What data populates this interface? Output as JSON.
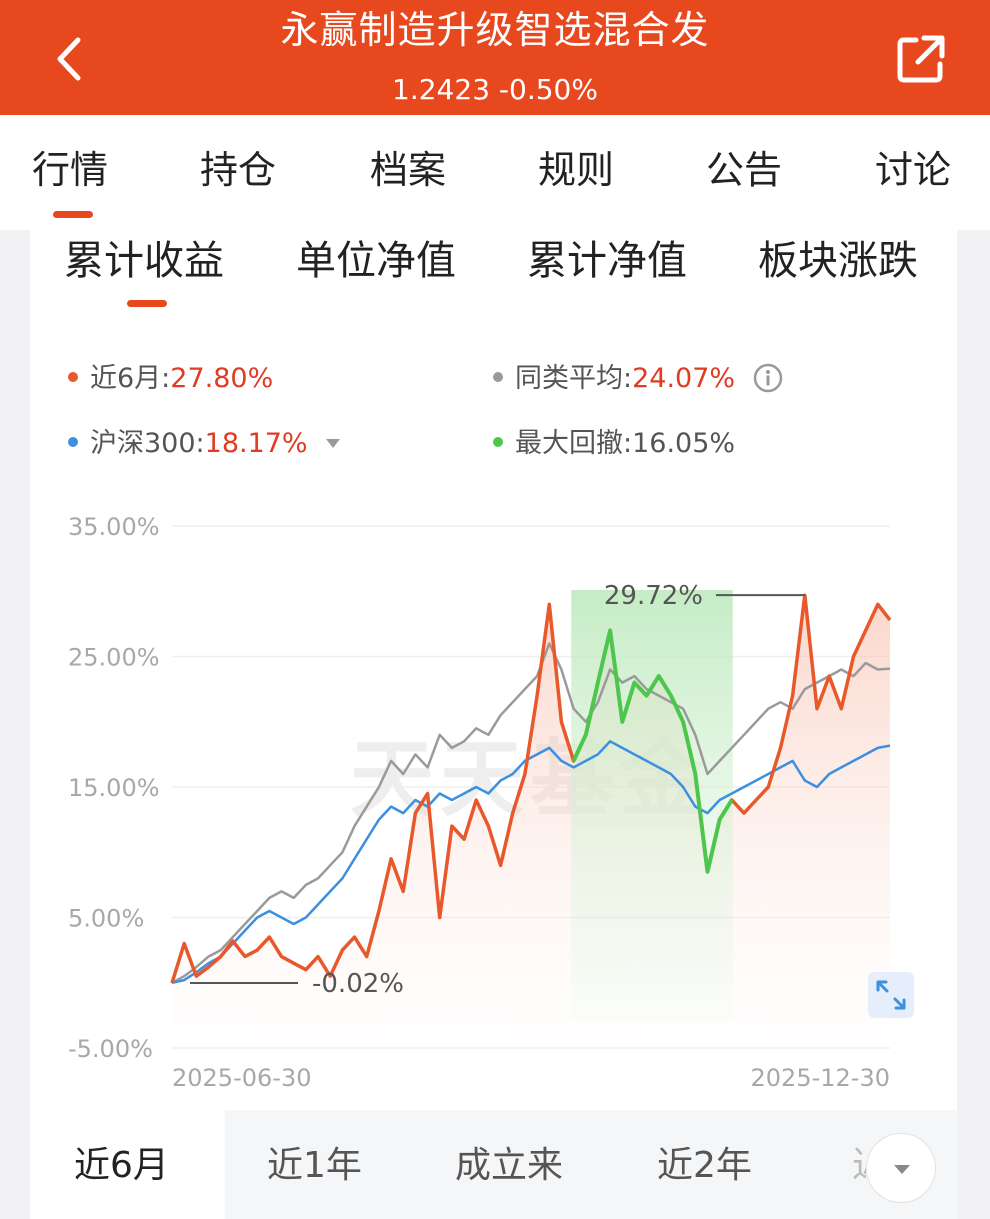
{
  "header": {
    "title": "永赢制造升级智选混合发",
    "subtitle": "1.2423 -0.50%"
  },
  "tabs": [
    "行情",
    "持仓",
    "档案",
    "规则",
    "公告",
    "讨论"
  ],
  "subtabs": [
    "累计收益",
    "单位净值",
    "累计净值",
    "板块涨跌"
  ],
  "legend": {
    "fund": {
      "label": "近6月:",
      "value": "27.80%",
      "color": "#e8582a"
    },
    "peer": {
      "label": "同类平均:",
      "value": "24.07%",
      "color": "#9a9a9a"
    },
    "index": {
      "label": "沪深300:",
      "value": "18.17%",
      "color": "#3d8fe0"
    },
    "drawdown": {
      "label": "最大回撤:",
      "value": "16.05%",
      "color": "#4cc64c"
    }
  },
  "watermark": "天天基金",
  "annotations": {
    "max": "29.72%",
    "min": "-0.02%"
  },
  "periods": [
    "近6月",
    "近1年",
    "成立来",
    "近2年",
    "近"
  ],
  "chart_data": {
    "type": "line",
    "x_start": "2025-06-30",
    "x_end": "2025-12-30",
    "x_ticks": [
      "2025-06-30",
      "2025-12-30"
    ],
    "y_ticks": [
      "35.00%",
      "25.00%",
      "15.00%",
      "5.00%",
      "-5.00%"
    ],
    "ylim": [
      -5,
      35
    ],
    "grid": true,
    "drawdown_range": [
      0.556,
      0.781
    ],
    "series": [
      {
        "name": "近6月",
        "color": "#e8582a",
        "values": [
          -0.02,
          3.0,
          0.5,
          1.2,
          2.0,
          3.2,
          2.0,
          2.5,
          3.5,
          2.0,
          1.5,
          1.0,
          2.0,
          0.5,
          2.5,
          3.5,
          2.0,
          5.5,
          9.5,
          7.0,
          13.0,
          14.5,
          5.0,
          12.0,
          11.0,
          14.0,
          12.0,
          9.0,
          13.0,
          16.0,
          22.0,
          29.0,
          20.0,
          17.0,
          19.0,
          23.0,
          27.0,
          20.0,
          23.0,
          22.0,
          23.5,
          22.0,
          20.0,
          16.0,
          8.5,
          12.5,
          14.0,
          13.0,
          14.0,
          15.0,
          18.0,
          22.0,
          29.7,
          21.0,
          23.5,
          21.0,
          25.0,
          27.0,
          29.0,
          27.8
        ]
      },
      {
        "name": "同类平均",
        "color": "#9a9a9a",
        "values": [
          0.0,
          0.5,
          1.2,
          2.0,
          2.5,
          3.5,
          4.5,
          5.5,
          6.5,
          7.0,
          6.5,
          7.5,
          8.0,
          9.0,
          10.0,
          12.0,
          13.5,
          15.0,
          17.0,
          16.0,
          17.5,
          16.5,
          19.0,
          18.0,
          18.5,
          19.5,
          19.0,
          20.5,
          21.5,
          22.5,
          23.5,
          26.0,
          24.0,
          21.0,
          20.0,
          21.5,
          24.0,
          23.0,
          23.5,
          22.5,
          22.0,
          21.5,
          21.0,
          19.0,
          16.0,
          17.0,
          18.0,
          19.0,
          20.0,
          21.0,
          21.5,
          21.0,
          22.5,
          23.0,
          23.5,
          24.0,
          23.5,
          24.5,
          24.0,
          24.07
        ]
      },
      {
        "name": "沪深300",
        "color": "#3d8fe0",
        "values": [
          0.0,
          0.2,
          0.8,
          1.5,
          2.0,
          3.0,
          4.0,
          5.0,
          5.5,
          5.0,
          4.5,
          5.0,
          6.0,
          7.0,
          8.0,
          9.5,
          11.0,
          12.5,
          13.5,
          13.0,
          14.0,
          13.5,
          14.5,
          14.0,
          14.5,
          15.0,
          14.5,
          15.5,
          16.0,
          17.0,
          17.5,
          18.0,
          17.0,
          16.5,
          17.0,
          17.5,
          18.5,
          18.0,
          17.5,
          17.0,
          16.5,
          16.0,
          15.0,
          13.5,
          13.0,
          14.0,
          14.5,
          15.0,
          15.5,
          16.0,
          16.5,
          17.0,
          15.5,
          15.0,
          16.0,
          16.5,
          17.0,
          17.5,
          18.0,
          18.17
        ]
      }
    ]
  }
}
